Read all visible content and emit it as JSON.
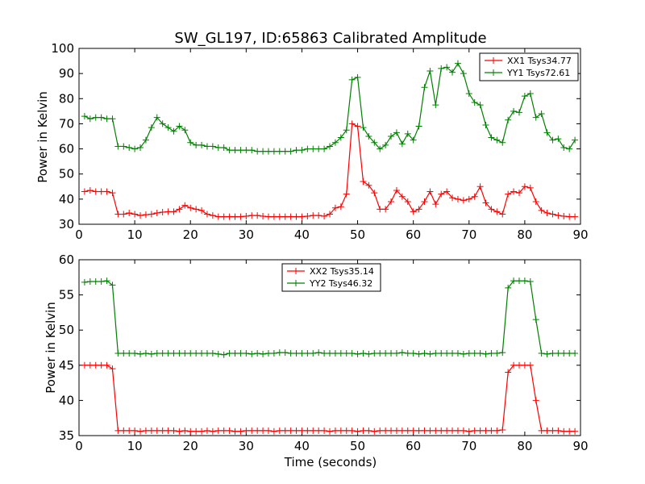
{
  "chart_data": [
    {
      "type": "line",
      "title": "SW_GL197, ID:65863 Calibrated Amplitude",
      "xlabel": "",
      "ylabel": "Power in Kelvin",
      "xlim": [
        0,
        90
      ],
      "ylim": [
        30,
        100
      ],
      "xticks": [
        0,
        10,
        20,
        30,
        40,
        50,
        60,
        70,
        80,
        90
      ],
      "yticks": [
        30,
        40,
        50,
        60,
        70,
        80,
        90,
        100
      ],
      "legend_position": "top-right",
      "x": [
        1,
        2,
        3,
        4,
        5,
        6,
        7,
        8,
        9,
        10,
        11,
        12,
        13,
        14,
        15,
        16,
        17,
        18,
        19,
        20,
        21,
        22,
        23,
        24,
        25,
        26,
        27,
        28,
        29,
        30,
        31,
        32,
        33,
        34,
        35,
        36,
        37,
        38,
        39,
        40,
        41,
        42,
        43,
        44,
        45,
        46,
        47,
        48,
        49,
        50,
        51,
        52,
        53,
        54,
        55,
        56,
        57,
        58,
        59,
        60,
        61,
        62,
        63,
        64,
        65,
        66,
        67,
        68,
        69,
        70,
        71,
        72,
        73,
        74,
        75,
        76,
        77,
        78,
        79,
        80,
        81,
        82,
        83,
        84,
        85,
        86,
        87,
        88,
        89
      ],
      "series": [
        {
          "name": "XX1 Tsys34.77",
          "color": "#ff0000",
          "values": [
            43,
            43.5,
            43,
            43,
            43,
            42.5,
            34,
            34,
            34.5,
            34,
            33.5,
            33.8,
            34,
            34.5,
            34.8,
            35,
            35,
            36,
            37.5,
            36.5,
            36,
            35.5,
            34,
            33.5,
            33,
            33,
            33,
            33,
            33,
            33.2,
            33.5,
            33.5,
            33.2,
            33,
            33,
            33,
            33,
            33,
            33,
            33,
            33.2,
            33.5,
            33.5,
            33.2,
            34,
            36.5,
            37,
            42,
            70,
            69,
            47,
            45.5,
            42.5,
            36,
            36,
            39,
            43.5,
            41,
            39,
            35,
            36,
            39,
            43,
            38,
            42,
            43,
            40.5,
            40,
            39.5,
            40,
            41,
            45,
            38.5,
            36,
            35,
            34,
            42,
            43,
            42.5,
            45,
            44.5,
            39,
            35.5,
            34.5,
            34,
            33.5,
            33.2,
            33,
            33
          ]
        },
        {
          "name": "YY1 Tsys72.61",
          "color": "#008000",
          "values": [
            73,
            72,
            72.5,
            72.5,
            72,
            72,
            61,
            61,
            60.5,
            60,
            60.5,
            63.5,
            68.5,
            72.5,
            70,
            68.5,
            67,
            69,
            67.5,
            62.5,
            61.5,
            61.5,
            61,
            61,
            60.5,
            60.5,
            59.5,
            59.5,
            59.5,
            59.5,
            59.5,
            59,
            59,
            59,
            59,
            59,
            59,
            59,
            59.5,
            59.5,
            60,
            60,
            60,
            60,
            61,
            62.5,
            64.5,
            67.5,
            87.5,
            88.5,
            68.5,
            65,
            62.5,
            60,
            61.5,
            65,
            66.5,
            62,
            66,
            63.5,
            69,
            84.5,
            91,
            77.5,
            92,
            92.5,
            90.5,
            94,
            90,
            82,
            78.5,
            77.5,
            69.5,
            64.5,
            63.5,
            62.5,
            71.5,
            75,
            74.5,
            81,
            82,
            72.5,
            74,
            66.5,
            63.5,
            64,
            60.5,
            60,
            63.5
          ]
        }
      ]
    },
    {
      "type": "line",
      "title": "",
      "xlabel": "Time (seconds)",
      "ylabel": "Power in Kelvin",
      "xlim": [
        0,
        90
      ],
      "ylim": [
        35,
        60
      ],
      "xticks": [
        0,
        10,
        20,
        30,
        40,
        50,
        60,
        70,
        80,
        90
      ],
      "yticks": [
        35,
        40,
        45,
        50,
        55,
        60
      ],
      "legend_position": "top-center",
      "x": [
        1,
        2,
        3,
        4,
        5,
        6,
        7,
        8,
        9,
        10,
        11,
        12,
        13,
        14,
        15,
        16,
        17,
        18,
        19,
        20,
        21,
        22,
        23,
        24,
        25,
        26,
        27,
        28,
        29,
        30,
        31,
        32,
        33,
        34,
        35,
        36,
        37,
        38,
        39,
        40,
        41,
        42,
        43,
        44,
        45,
        46,
        47,
        48,
        49,
        50,
        51,
        52,
        53,
        54,
        55,
        56,
        57,
        58,
        59,
        60,
        61,
        62,
        63,
        64,
        65,
        66,
        67,
        68,
        69,
        70,
        71,
        72,
        73,
        74,
        75,
        76,
        77,
        78,
        79,
        80,
        81,
        82,
        83,
        84,
        85,
        86,
        87,
        88,
        89
      ],
      "series": [
        {
          "name": "XX2 Tsys35.14",
          "color": "#ff0000",
          "values": [
            45,
            45,
            45,
            45,
            45,
            44.5,
            35.7,
            35.7,
            35.7,
            35.7,
            35.6,
            35.7,
            35.7,
            35.7,
            35.7,
            35.7,
            35.7,
            35.6,
            35.7,
            35.6,
            35.6,
            35.6,
            35.7,
            35.6,
            35.7,
            35.7,
            35.7,
            35.6,
            35.6,
            35.7,
            35.7,
            35.7,
            35.7,
            35.7,
            35.6,
            35.7,
            35.7,
            35.7,
            35.7,
            35.7,
            35.7,
            35.7,
            35.7,
            35.7,
            35.6,
            35.7,
            35.7,
            35.7,
            35.7,
            35.6,
            35.7,
            35.7,
            35.6,
            35.7,
            35.7,
            35.7,
            35.7,
            35.7,
            35.7,
            35.7,
            35.7,
            35.7,
            35.7,
            35.7,
            35.7,
            35.7,
            35.7,
            35.7,
            35.7,
            35.6,
            35.7,
            35.7,
            35.7,
            35.7,
            35.7,
            35.8,
            44,
            45,
            45,
            45,
            45,
            40,
            35.7,
            35.7,
            35.7,
            35.7,
            35.6,
            35.6,
            35.6
          ]
        },
        {
          "name": "YY2 Tsys46.32",
          "color": "#008000",
          "values": [
            56.8,
            56.9,
            56.9,
            56.9,
            57,
            56.4,
            46.7,
            46.7,
            46.7,
            46.7,
            46.6,
            46.7,
            46.6,
            46.7,
            46.7,
            46.7,
            46.7,
            46.7,
            46.7,
            46.7,
            46.7,
            46.7,
            46.7,
            46.7,
            46.6,
            46.5,
            46.7,
            46.7,
            46.7,
            46.7,
            46.6,
            46.7,
            46.6,
            46.7,
            46.7,
            46.8,
            46.8,
            46.7,
            46.7,
            46.7,
            46.7,
            46.7,
            46.8,
            46.7,
            46.7,
            46.7,
            46.7,
            46.7,
            46.7,
            46.6,
            46.7,
            46.6,
            46.7,
            46.7,
            46.7,
            46.7,
            46.7,
            46.8,
            46.7,
            46.7,
            46.6,
            46.7,
            46.6,
            46.7,
            46.7,
            46.7,
            46.7,
            46.7,
            46.6,
            46.7,
            46.7,
            46.7,
            46.6,
            46.7,
            46.7,
            46.8,
            56,
            57,
            57,
            57,
            56.9,
            51.5,
            46.7,
            46.6,
            46.7,
            46.7,
            46.7,
            46.7,
            46.7
          ]
        }
      ]
    }
  ]
}
